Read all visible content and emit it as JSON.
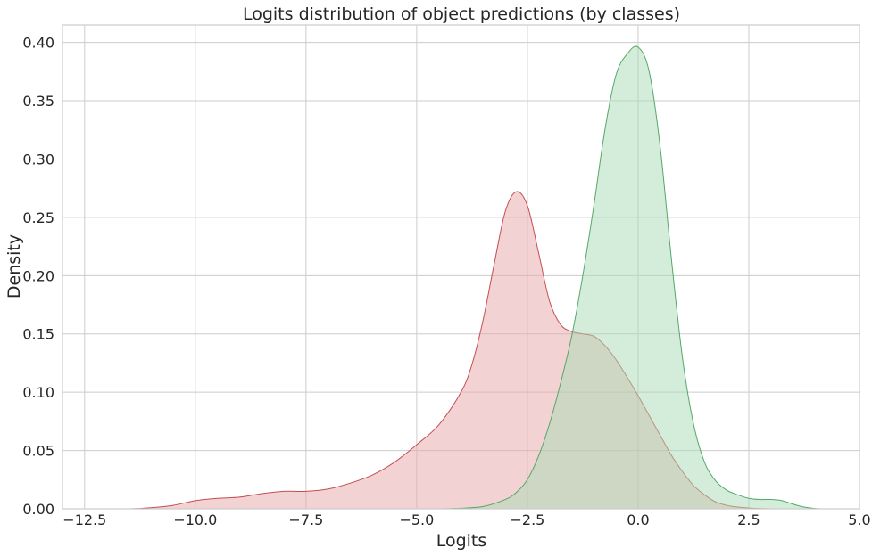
{
  "chart_data": {
    "type": "area",
    "title": "Logits distribution of object predictions (by classes)",
    "xlabel": "Logits",
    "ylabel": "Density",
    "xlim": [
      -13.0,
      5.0
    ],
    "ylim": [
      0,
      0.415
    ],
    "x_ticks": [
      -12.5,
      -10.0,
      -7.5,
      -5.0,
      -2.5,
      0.0,
      2.5,
      5.0
    ],
    "x_tick_labels": [
      "−12.5",
      "−10.0",
      "−7.5",
      "−5.0",
      "−2.5",
      "0.0",
      "2.5",
      "5.0"
    ],
    "y_ticks": [
      0.0,
      0.05,
      0.1,
      0.15,
      0.2,
      0.25,
      0.3,
      0.35,
      0.4
    ],
    "y_tick_labels": [
      "0.00",
      "0.05",
      "0.10",
      "0.15",
      "0.20",
      "0.25",
      "0.30",
      "0.35",
      "0.40"
    ],
    "grid": true,
    "series": [
      {
        "line_color": "#c44e52",
        "fill_color": "#e8a5a7",
        "x": [
          -12.1,
          -11.5,
          -11.0,
          -10.5,
          -10.0,
          -9.5,
          -9.0,
          -8.5,
          -8.0,
          -7.5,
          -7.0,
          -6.5,
          -6.0,
          -5.5,
          -5.0,
          -4.5,
          -4.0,
          -3.75,
          -3.5,
          -3.25,
          -3.0,
          -2.75,
          -2.5,
          -2.25,
          -2.0,
          -1.75,
          -1.5,
          -1.25,
          -1.0,
          -0.75,
          -0.5,
          -0.25,
          0.0,
          0.25,
          0.5,
          0.75,
          1.0,
          1.25,
          1.5,
          1.75,
          2.0,
          2.25,
          2.5,
          2.75,
          3.0,
          3.5
        ],
        "y": [
          0.0,
          0.0,
          0.001,
          0.003,
          0.007,
          0.009,
          0.01,
          0.013,
          0.015,
          0.015,
          0.017,
          0.022,
          0.029,
          0.04,
          0.055,
          0.072,
          0.1,
          0.124,
          0.162,
          0.21,
          0.255,
          0.272,
          0.26,
          0.22,
          0.178,
          0.158,
          0.152,
          0.15,
          0.148,
          0.14,
          0.128,
          0.113,
          0.097,
          0.08,
          0.063,
          0.046,
          0.032,
          0.02,
          0.012,
          0.006,
          0.003,
          0.0015,
          0.0007,
          0.0003,
          0.0,
          0.0
        ]
      },
      {
        "line_color": "#55a868",
        "fill_color": "#a9d9b5",
        "x": [
          -5.0,
          -4.5,
          -4.0,
          -3.5,
          -3.0,
          -2.75,
          -2.5,
          -2.25,
          -2.0,
          -1.75,
          -1.5,
          -1.25,
          -1.0,
          -0.75,
          -0.5,
          -0.25,
          0.0,
          0.25,
          0.5,
          0.75,
          1.0,
          1.25,
          1.5,
          1.75,
          2.0,
          2.25,
          2.5,
          2.75,
          3.0,
          3.25,
          3.5,
          3.75,
          4.0,
          4.2
        ],
        "y": [
          0.0,
          0.0,
          0.0005,
          0.002,
          0.008,
          0.014,
          0.025,
          0.045,
          0.073,
          0.108,
          0.148,
          0.2,
          0.26,
          0.325,
          0.372,
          0.39,
          0.396,
          0.375,
          0.31,
          0.215,
          0.13,
          0.073,
          0.04,
          0.024,
          0.016,
          0.012,
          0.009,
          0.008,
          0.008,
          0.007,
          0.004,
          0.0015,
          0.0003,
          0.0
        ]
      }
    ]
  }
}
